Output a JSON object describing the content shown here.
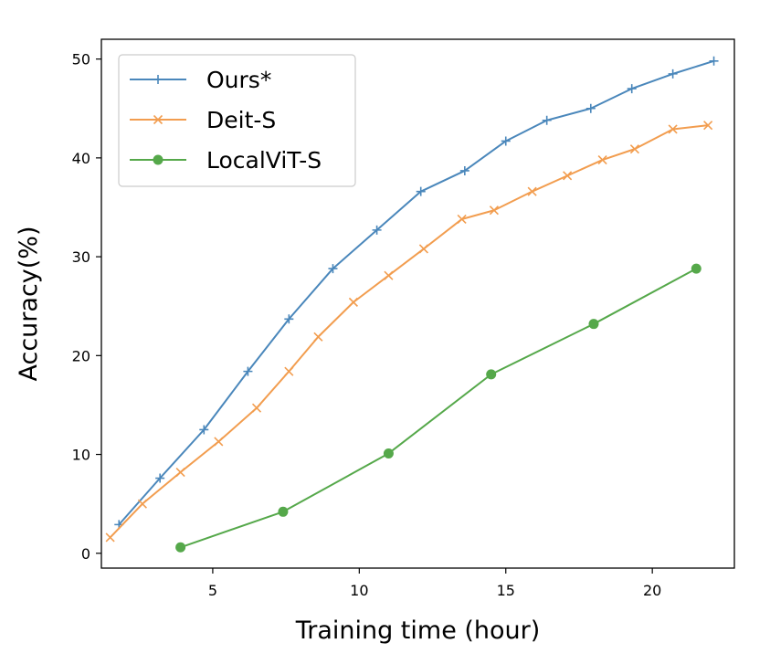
{
  "chart_data": {
    "type": "line",
    "title": "",
    "xlabel": "Training time (hour)",
    "ylabel": "Accuracy(%)",
    "xlim": [
      1.2,
      22.8
    ],
    "ylim": [
      -1.5,
      52
    ],
    "xticks": [
      5,
      10,
      15,
      20
    ],
    "yticks": [
      0,
      10,
      20,
      30,
      40,
      50
    ],
    "grid": false,
    "legend_position": "top-left",
    "series": [
      {
        "name": "Ours*",
        "color": "#4a87bb",
        "marker": "plus",
        "x": [
          1.8,
          3.2,
          4.7,
          6.2,
          7.6,
          9.1,
          10.6,
          12.1,
          13.6,
          15.0,
          16.4,
          17.9,
          19.3,
          20.7,
          22.1
        ],
        "y": [
          2.9,
          7.6,
          12.5,
          18.4,
          23.7,
          28.8,
          32.7,
          36.6,
          38.7,
          41.7,
          43.8,
          45.0,
          47.0,
          48.5,
          49.8
        ]
      },
      {
        "name": "Deit-S",
        "color": "#f29d4f",
        "marker": "x",
        "x": [
          1.5,
          2.6,
          3.9,
          5.2,
          6.5,
          7.6,
          8.6,
          9.8,
          11.0,
          12.2,
          13.5,
          14.6,
          15.9,
          17.1,
          18.3,
          19.4,
          20.7,
          21.9
        ],
        "y": [
          1.6,
          5.0,
          8.2,
          11.3,
          14.7,
          18.4,
          21.9,
          25.4,
          28.1,
          30.8,
          33.8,
          34.7,
          36.6,
          38.2,
          39.8,
          40.9,
          42.9,
          43.3
        ]
      },
      {
        "name": "LocalViT-S",
        "color": "#55a84a",
        "marker": "circle",
        "x": [
          3.9,
          7.4,
          11.0,
          14.5,
          18.0,
          21.5
        ],
        "y": [
          0.6,
          4.2,
          10.1,
          18.1,
          23.2,
          28.8
        ]
      }
    ]
  }
}
